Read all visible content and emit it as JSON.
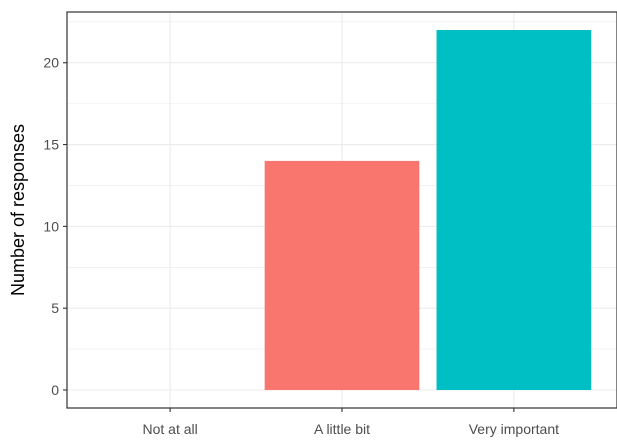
{
  "chart_data": {
    "type": "bar",
    "title": "",
    "xlabel": "",
    "ylabel": "Number of responses",
    "categories": [
      "Not at all",
      "A little bit",
      "Very important"
    ],
    "values": [
      0,
      14,
      22
    ],
    "colors": [
      "#F8766D",
      "#F8766D",
      "#00BFC4"
    ],
    "ylim": [
      -1.1,
      23.1
    ],
    "y_ticks": [
      0,
      5,
      10,
      15,
      20
    ],
    "y_tick_labels": [
      "0",
      "5",
      "10",
      "15",
      "20"
    ],
    "grid": true,
    "legend": "none"
  }
}
